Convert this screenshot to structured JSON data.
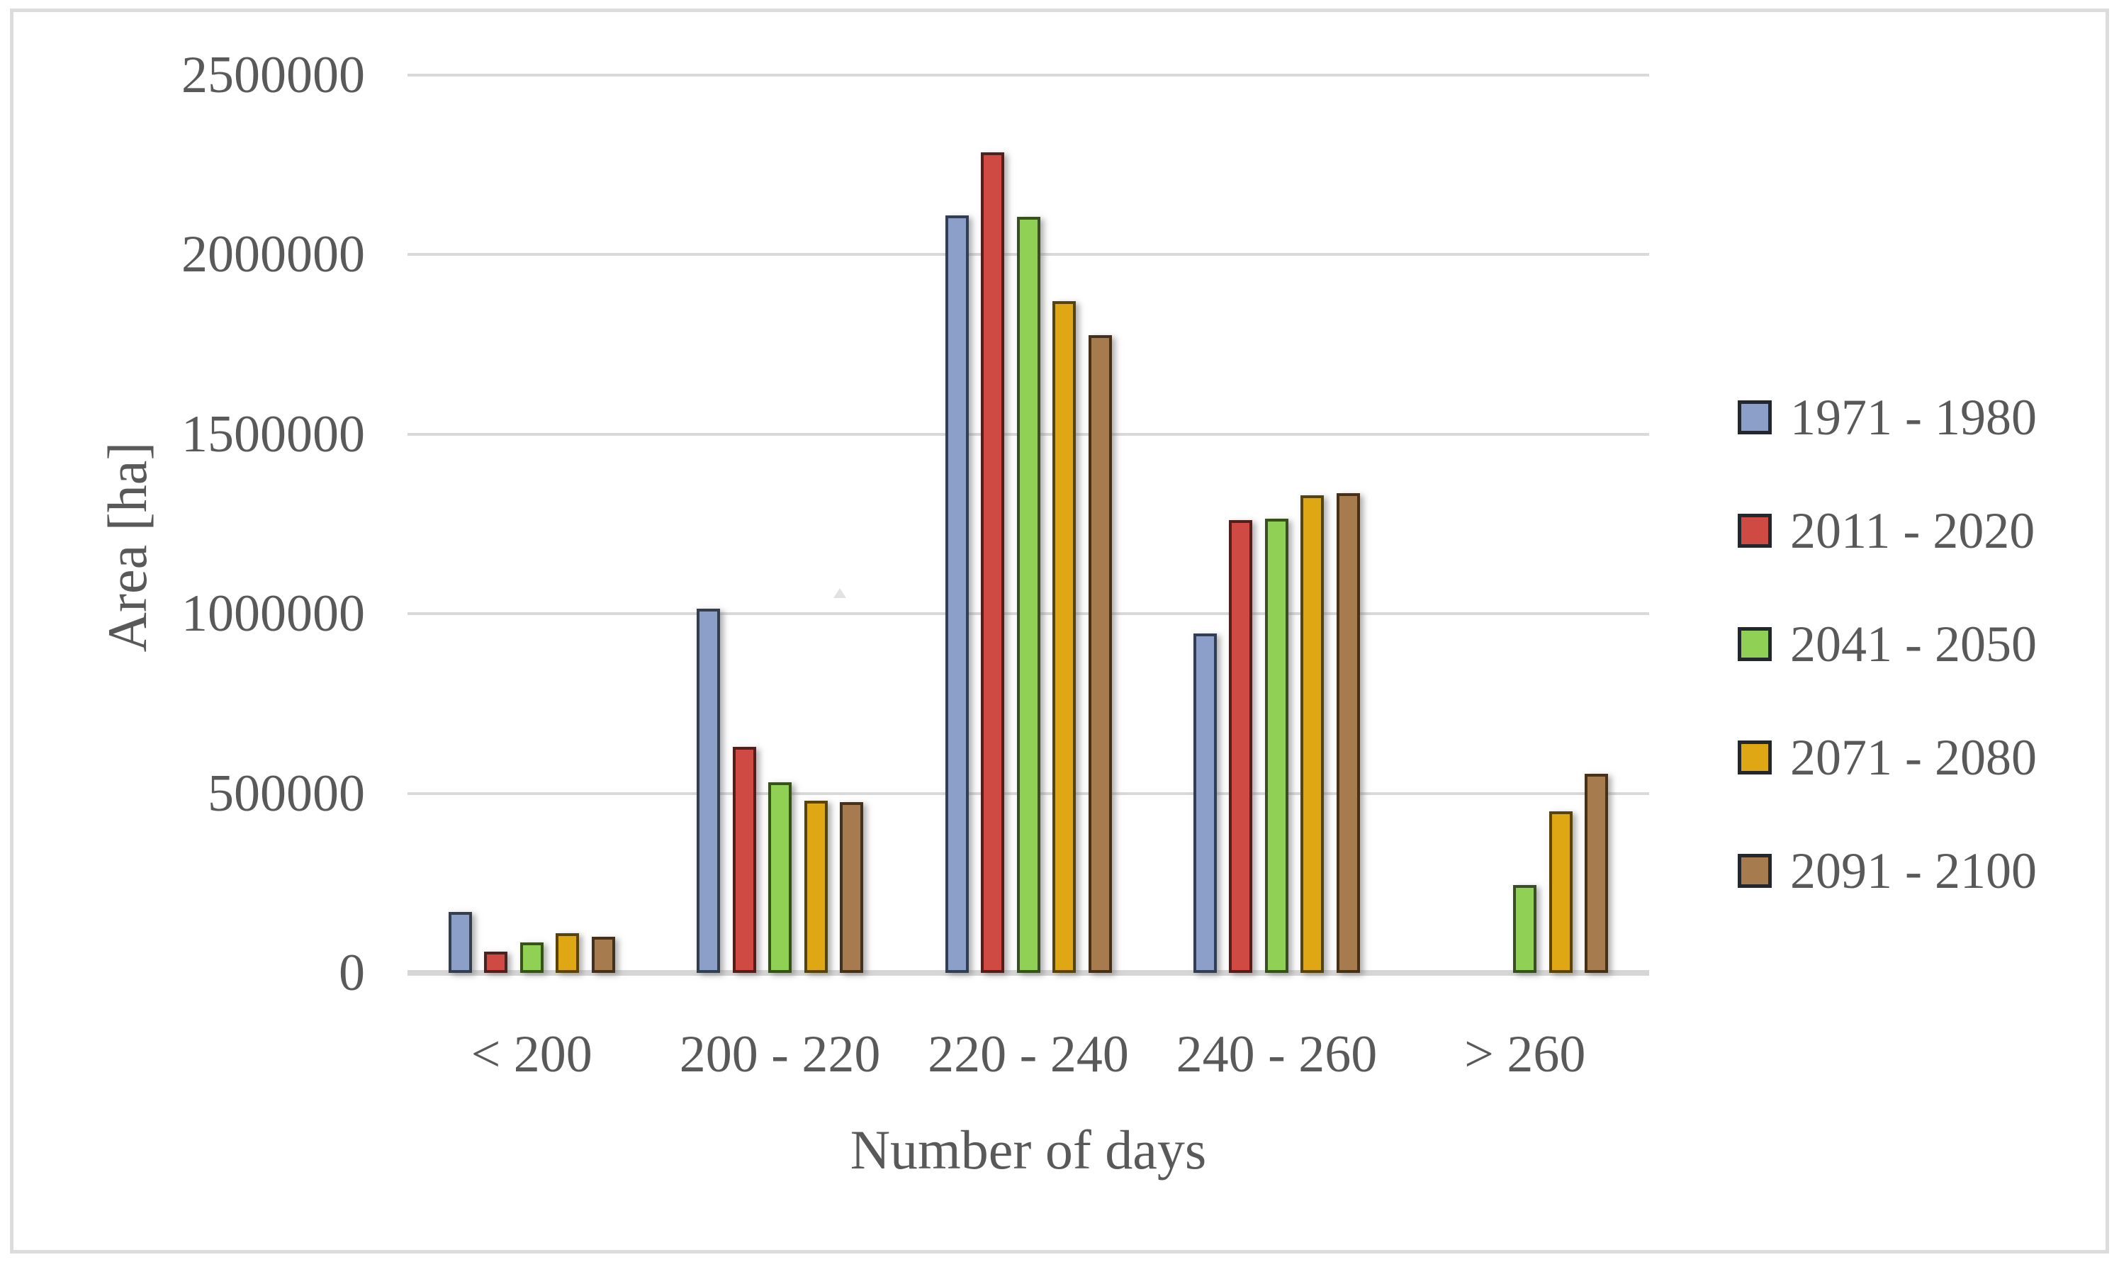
{
  "chart_data": {
    "type": "bar",
    "title": "",
    "xlabel": "Number of days",
    "ylabel": "Area [ha]",
    "categories": [
      "< 200",
      "200 - 220",
      "220 - 240",
      "240 - 260",
      "> 260"
    ],
    "series": [
      {
        "name": "1971 - 1980",
        "color": "#8C9FC9",
        "border_color": "#333E50",
        "values": [
          170000,
          1015000,
          2110000,
          945000,
          0
        ]
      },
      {
        "name": "2011 - 2020",
        "color": "#D04A44",
        "border_color": "#4E211E",
        "values": [
          60000,
          630000,
          2285000,
          1260000,
          0
        ]
      },
      {
        "name": "2041 - 2050",
        "color": "#8FD055",
        "border_color": "#38501E",
        "values": [
          85000,
          530000,
          2105000,
          1265000,
          245000
        ]
      },
      {
        "name": "2071 - 2080",
        "color": "#DFA714",
        "border_color": "#584408",
        "values": [
          110000,
          480000,
          1870000,
          1330000,
          450000
        ]
      },
      {
        "name": "2091 - 2100",
        "color": "#A67B4D",
        "border_color": "#45301C",
        "values": [
          100000,
          475000,
          1775000,
          1335000,
          555000
        ]
      }
    ],
    "ylim": [
      0,
      2500000
    ],
    "ytick_step": 500000,
    "ytick_labels": [
      "0",
      "500000",
      "1000000",
      "1500000",
      "2000000",
      "2500000"
    ],
    "grid": true,
    "legend_position": "right"
  },
  "colors": {
    "text": "#595959",
    "gridline": "#D9D9D9",
    "axis_line": "#D6D6D6",
    "frame": "#DCDCDC",
    "background": "#FFFFFF"
  }
}
